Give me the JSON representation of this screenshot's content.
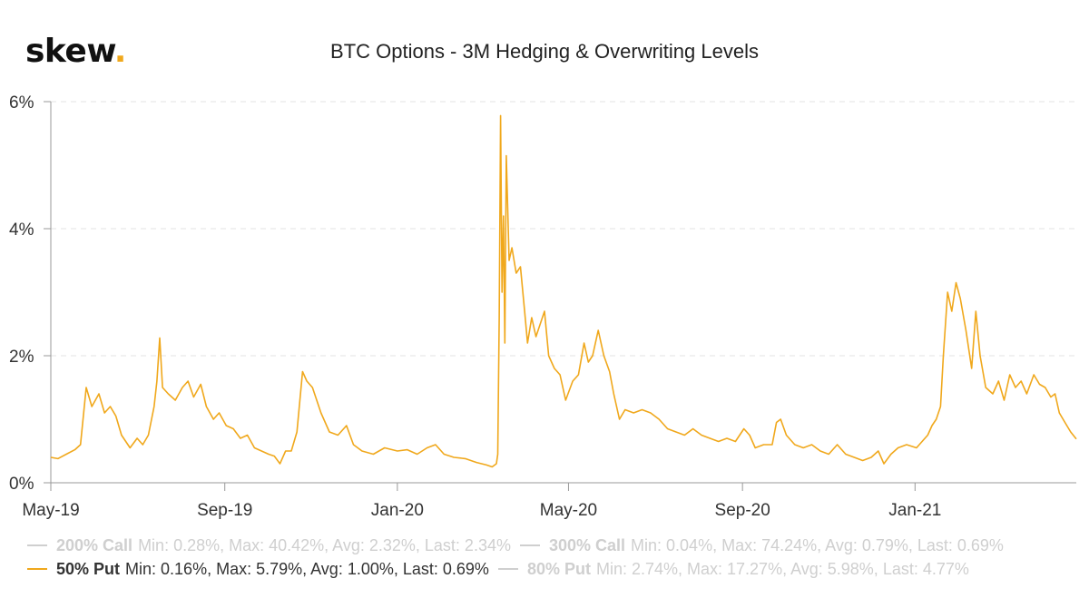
{
  "logo": {
    "text": "skew",
    "dot": "."
  },
  "chart_data": {
    "type": "line",
    "title": "BTC Options - 3M Hedging & Overwriting Levels",
    "xlabel": "",
    "ylabel": "",
    "x_range": [
      "2019-05-01",
      "2021-04-25"
    ],
    "ylim": [
      0,
      6
    ],
    "y_ticks": [
      0,
      2,
      4,
      6
    ],
    "y_tick_labels": [
      "0%",
      "2%",
      "4%",
      "6%"
    ],
    "x_ticks": [
      "2019-05-01",
      "2019-09-01",
      "2020-01-01",
      "2020-05-01",
      "2020-09-01",
      "2021-01-01"
    ],
    "x_tick_labels": [
      "May-19",
      "Sep-19",
      "Jan-20",
      "May-20",
      "Sep-20",
      "Jan-21"
    ],
    "grid": "horizontal dashed",
    "legend_position": "bottom",
    "series": [
      {
        "name": "50% Put",
        "color": "#f0a81c",
        "visible": true,
        "points": [
          [
            "2019-05-01",
            0.4
          ],
          [
            "2019-05-06",
            0.38
          ],
          [
            "2019-05-12",
            0.45
          ],
          [
            "2019-05-18",
            0.52
          ],
          [
            "2019-05-22",
            0.6
          ],
          [
            "2019-05-26",
            1.5
          ],
          [
            "2019-05-30",
            1.2
          ],
          [
            "2019-06-04",
            1.4
          ],
          [
            "2019-06-08",
            1.1
          ],
          [
            "2019-06-12",
            1.2
          ],
          [
            "2019-06-16",
            1.05
          ],
          [
            "2019-06-20",
            0.75
          ],
          [
            "2019-06-26",
            0.55
          ],
          [
            "2019-07-01",
            0.7
          ],
          [
            "2019-07-05",
            0.6
          ],
          [
            "2019-07-09",
            0.75
          ],
          [
            "2019-07-13",
            1.2
          ],
          [
            "2019-07-15",
            1.6
          ],
          [
            "2019-07-17",
            2.28
          ],
          [
            "2019-07-19",
            1.5
          ],
          [
            "2019-07-23",
            1.4
          ],
          [
            "2019-07-28",
            1.3
          ],
          [
            "2019-08-02",
            1.5
          ],
          [
            "2019-08-06",
            1.6
          ],
          [
            "2019-08-10",
            1.35
          ],
          [
            "2019-08-15",
            1.55
          ],
          [
            "2019-08-19",
            1.2
          ],
          [
            "2019-08-24",
            1.0
          ],
          [
            "2019-08-28",
            1.1
          ],
          [
            "2019-09-02",
            0.9
          ],
          [
            "2019-09-07",
            0.85
          ],
          [
            "2019-09-12",
            0.7
          ],
          [
            "2019-09-17",
            0.75
          ],
          [
            "2019-09-22",
            0.55
          ],
          [
            "2019-09-27",
            0.5
          ],
          [
            "2019-10-02",
            0.45
          ],
          [
            "2019-10-06",
            0.42
          ],
          [
            "2019-10-10",
            0.3
          ],
          [
            "2019-10-14",
            0.5
          ],
          [
            "2019-10-18",
            0.5
          ],
          [
            "2019-10-22",
            0.8
          ],
          [
            "2019-10-26",
            1.75
          ],
          [
            "2019-10-29",
            1.6
          ],
          [
            "2019-11-02",
            1.5
          ],
          [
            "2019-11-08",
            1.1
          ],
          [
            "2019-11-14",
            0.8
          ],
          [
            "2019-11-20",
            0.75
          ],
          [
            "2019-11-26",
            0.9
          ],
          [
            "2019-12-01",
            0.6
          ],
          [
            "2019-12-07",
            0.5
          ],
          [
            "2019-12-15",
            0.45
          ],
          [
            "2019-12-23",
            0.55
          ],
          [
            "2020-01-01",
            0.5
          ],
          [
            "2020-01-08",
            0.52
          ],
          [
            "2020-01-15",
            0.45
          ],
          [
            "2020-01-22",
            0.55
          ],
          [
            "2020-01-28",
            0.6
          ],
          [
            "2020-02-03",
            0.45
          ],
          [
            "2020-02-10",
            0.4
          ],
          [
            "2020-02-18",
            0.38
          ],
          [
            "2020-02-26",
            0.32
          ],
          [
            "2020-03-04",
            0.28
          ],
          [
            "2020-03-08",
            0.25
          ],
          [
            "2020-03-11",
            0.3
          ],
          [
            "2020-03-12",
            0.45
          ],
          [
            "2020-03-13",
            2.6
          ],
          [
            "2020-03-14",
            5.78
          ],
          [
            "2020-03-15",
            3.0
          ],
          [
            "2020-03-16",
            4.2
          ],
          [
            "2020-03-17",
            2.2
          ],
          [
            "2020-03-18",
            5.15
          ],
          [
            "2020-03-20",
            3.5
          ],
          [
            "2020-03-22",
            3.7
          ],
          [
            "2020-03-25",
            3.3
          ],
          [
            "2020-03-28",
            3.4
          ],
          [
            "2020-03-31",
            2.7
          ],
          [
            "2020-04-02",
            2.2
          ],
          [
            "2020-04-05",
            2.6
          ],
          [
            "2020-04-08",
            2.3
          ],
          [
            "2020-04-11",
            2.5
          ],
          [
            "2020-04-14",
            2.7
          ],
          [
            "2020-04-17",
            2.0
          ],
          [
            "2020-04-21",
            1.8
          ],
          [
            "2020-04-25",
            1.7
          ],
          [
            "2020-04-29",
            1.3
          ],
          [
            "2020-05-04",
            1.6
          ],
          [
            "2020-05-08",
            1.7
          ],
          [
            "2020-05-12",
            2.2
          ],
          [
            "2020-05-15",
            1.9
          ],
          [
            "2020-05-18",
            2.0
          ],
          [
            "2020-05-22",
            2.4
          ],
          [
            "2020-05-26",
            2.0
          ],
          [
            "2020-05-30",
            1.75
          ],
          [
            "2020-06-02",
            1.4
          ],
          [
            "2020-06-06",
            1.0
          ],
          [
            "2020-06-10",
            1.15
          ],
          [
            "2020-06-16",
            1.1
          ],
          [
            "2020-06-22",
            1.15
          ],
          [
            "2020-06-28",
            1.1
          ],
          [
            "2020-07-04",
            1.0
          ],
          [
            "2020-07-10",
            0.85
          ],
          [
            "2020-07-16",
            0.8
          ],
          [
            "2020-07-22",
            0.75
          ],
          [
            "2020-07-28",
            0.85
          ],
          [
            "2020-08-03",
            0.75
          ],
          [
            "2020-08-09",
            0.7
          ],
          [
            "2020-08-15",
            0.65
          ],
          [
            "2020-08-21",
            0.7
          ],
          [
            "2020-08-27",
            0.65
          ],
          [
            "2020-09-02",
            0.85
          ],
          [
            "2020-09-06",
            0.75
          ],
          [
            "2020-09-10",
            0.55
          ],
          [
            "2020-09-16",
            0.6
          ],
          [
            "2020-09-22",
            0.6
          ],
          [
            "2020-09-25",
            0.95
          ],
          [
            "2020-09-28",
            1.0
          ],
          [
            "2020-10-02",
            0.75
          ],
          [
            "2020-10-08",
            0.6
          ],
          [
            "2020-10-14",
            0.55
          ],
          [
            "2020-10-20",
            0.6
          ],
          [
            "2020-10-26",
            0.5
          ],
          [
            "2020-11-01",
            0.45
          ],
          [
            "2020-11-07",
            0.6
          ],
          [
            "2020-11-13",
            0.45
          ],
          [
            "2020-11-19",
            0.4
          ],
          [
            "2020-11-25",
            0.35
          ],
          [
            "2020-12-01",
            0.4
          ],
          [
            "2020-12-06",
            0.5
          ],
          [
            "2020-12-10",
            0.3
          ],
          [
            "2020-12-15",
            0.45
          ],
          [
            "2020-12-20",
            0.55
          ],
          [
            "2020-12-26",
            0.6
          ],
          [
            "2021-01-02",
            0.55
          ],
          [
            "2021-01-06",
            0.65
          ],
          [
            "2021-01-10",
            0.75
          ],
          [
            "2021-01-13",
            0.9
          ],
          [
            "2021-01-16",
            1.0
          ],
          [
            "2021-01-19",
            1.2
          ],
          [
            "2021-01-21",
            2.0
          ],
          [
            "2021-01-24",
            3.0
          ],
          [
            "2021-01-27",
            2.7
          ],
          [
            "2021-01-30",
            3.15
          ],
          [
            "2021-02-02",
            2.9
          ],
          [
            "2021-02-06",
            2.4
          ],
          [
            "2021-02-10",
            1.8
          ],
          [
            "2021-02-13",
            2.7
          ],
          [
            "2021-02-16",
            2.0
          ],
          [
            "2021-02-20",
            1.5
          ],
          [
            "2021-02-25",
            1.4
          ],
          [
            "2021-03-01",
            1.6
          ],
          [
            "2021-03-05",
            1.3
          ],
          [
            "2021-03-09",
            1.7
          ],
          [
            "2021-03-13",
            1.5
          ],
          [
            "2021-03-17",
            1.6
          ],
          [
            "2021-03-21",
            1.4
          ],
          [
            "2021-03-26",
            1.7
          ],
          [
            "2021-03-30",
            1.55
          ],
          [
            "2021-04-03",
            1.5
          ],
          [
            "2021-04-07",
            1.35
          ],
          [
            "2021-04-10",
            1.4
          ],
          [
            "2021-04-13",
            1.1
          ],
          [
            "2021-04-17",
            0.95
          ],
          [
            "2021-04-21",
            0.8
          ],
          [
            "2021-04-25",
            0.69
          ]
        ]
      }
    ]
  },
  "legend": {
    "items": [
      {
        "name": "200% Call",
        "stats": "Min: 0.28%, Max: 40.42%, Avg: 2.32%, Last: 2.34%",
        "active": false
      },
      {
        "name": "300% Call",
        "stats": "Min: 0.04%, Max: 74.24%, Avg: 0.79%, Last: 0.69%",
        "active": false
      },
      {
        "name": "50% Put",
        "stats": "Min: 0.16%, Max: 5.79%, Avg: 1.00%, Last: 0.69%",
        "active": true
      },
      {
        "name": "80% Put",
        "stats": "Min: 2.74%, Max: 17.27%, Avg: 5.98%, Last: 4.77%",
        "active": false
      }
    ]
  }
}
